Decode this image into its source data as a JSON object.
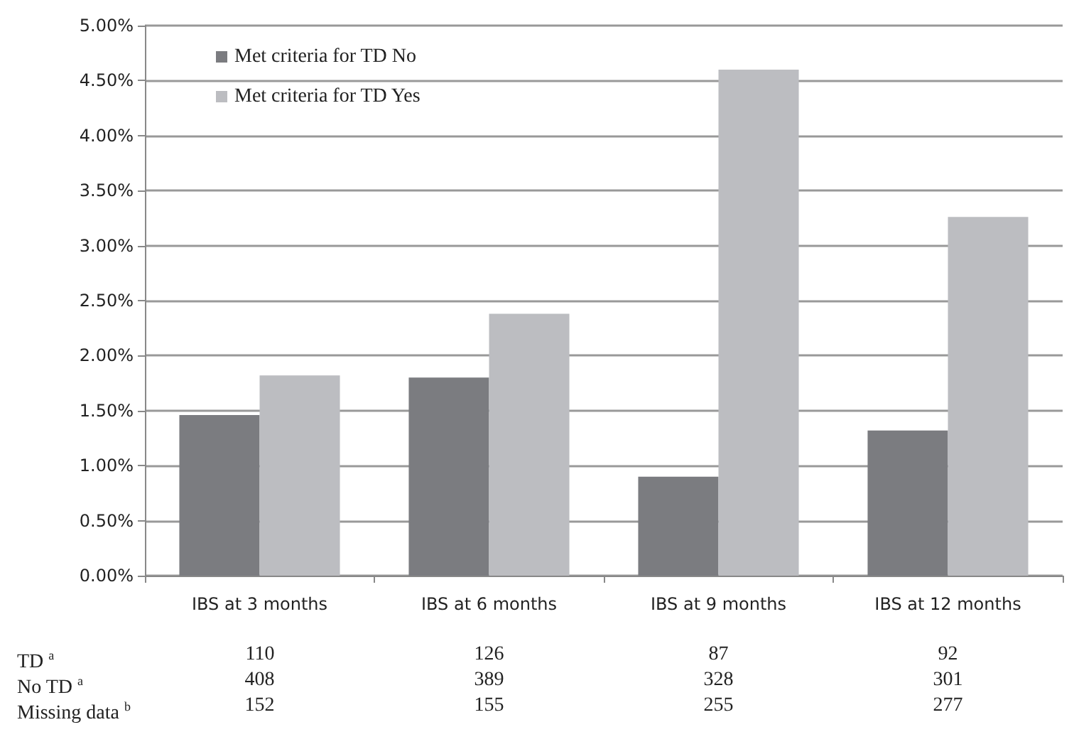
{
  "chart_data": {
    "type": "bar",
    "categories": [
      "IBS at 3 months",
      "IBS at 6 months",
      "IBS at 9 months",
      "IBS at 12 months"
    ],
    "series": [
      {
        "name": "Met criteria for TD No",
        "color": "#7b7c80",
        "values": [
          1.46,
          1.8,
          0.9,
          1.32
        ]
      },
      {
        "name": "Met criteria for TD Yes",
        "color": "#bcbdc1",
        "values": [
          1.82,
          2.38,
          4.6,
          3.26
        ]
      }
    ],
    "ylim": [
      0,
      5
    ],
    "yticks": [
      {
        "value": 0,
        "label": "0.00%"
      },
      {
        "value": 0.5,
        "label": "0.50%"
      },
      {
        "value": 1,
        "label": "1.00%"
      },
      {
        "value": 1.5,
        "label": "1.50%"
      },
      {
        "value": 2,
        "label": "2.00%"
      },
      {
        "value": 2.5,
        "label": "2.50%"
      },
      {
        "value": 3,
        "label": "3.00%"
      },
      {
        "value": 3.5,
        "label": "3.50%"
      },
      {
        "value": 4,
        "label": "4.00%"
      },
      {
        "value": 4.5,
        "label": "4.50%"
      },
      {
        "value": 5,
        "label": "5.00%"
      }
    ],
    "grid": "y",
    "legend": "top left",
    "annotations": [
      "TD $^{a}$",
      "110",
      "126",
      "87",
      "92",
      "No TD $^{a}$",
      "408",
      "389",
      "328",
      "301",
      "Missing data $^{b}$",
      "152",
      "155",
      "255",
      "277"
    ]
  }
}
